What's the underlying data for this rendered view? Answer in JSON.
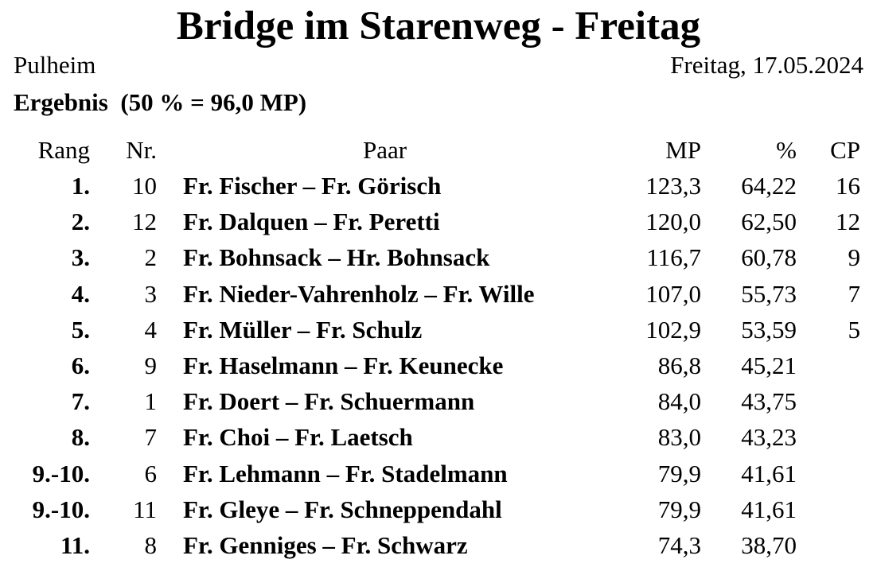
{
  "page": {
    "background": "#ffffff",
    "text_color": "#000000"
  },
  "header": {
    "title": "Bridge im Starenweg - Freitag",
    "location": "Pulheim",
    "date": "Freitag, 17.05.2024",
    "result_label": "Ergebnis  (50 % = 96,0 MP)"
  },
  "table": {
    "columns": [
      "Rang",
      "Nr.",
      "Paar",
      "MP",
      "%",
      "CP"
    ],
    "rows": [
      {
        "rang": "1.",
        "nr": "10",
        "paar": "Fr. Fischer – Fr. Görisch",
        "mp": "123,3",
        "pct": "64,22",
        "cp": "16"
      },
      {
        "rang": "2.",
        "nr": "12",
        "paar": "Fr. Dalquen – Fr. Peretti",
        "mp": "120,0",
        "pct": "62,50",
        "cp": "12"
      },
      {
        "rang": "3.",
        "nr": "2",
        "paar": "Fr. Bohnsack – Hr. Bohnsack",
        "mp": "116,7",
        "pct": "60,78",
        "cp": "9"
      },
      {
        "rang": "4.",
        "nr": "3",
        "paar": "Fr. Nieder-Vahrenholz – Fr. Wille",
        "mp": "107,0",
        "pct": "55,73",
        "cp": "7"
      },
      {
        "rang": "5.",
        "nr": "4",
        "paar": "Fr. Müller – Fr. Schulz",
        "mp": "102,9",
        "pct": "53,59",
        "cp": "5"
      },
      {
        "rang": "6.",
        "nr": "9",
        "paar": "Fr. Haselmann – Fr. Keunecke",
        "mp": "86,8",
        "pct": "45,21",
        "cp": ""
      },
      {
        "rang": "7.",
        "nr": "1",
        "paar": "Fr. Doert – Fr. Schuermann",
        "mp": "84,0",
        "pct": "43,75",
        "cp": ""
      },
      {
        "rang": "8.",
        "nr": "7",
        "paar": "Fr. Choi – Fr. Laetsch",
        "mp": "83,0",
        "pct": "43,23",
        "cp": ""
      },
      {
        "rang": "9.-10.",
        "nr": "6",
        "paar": "Fr. Lehmann – Fr. Stadelmann",
        "mp": "79,9",
        "pct": "41,61",
        "cp": ""
      },
      {
        "rang": "9.-10.",
        "nr": "11",
        "paar": "Fr. Gleye – Fr. Schneppendahl",
        "mp": "79,9",
        "pct": "41,61",
        "cp": ""
      },
      {
        "rang": "11.",
        "nr": "8",
        "paar": "Fr. Genniges – Fr. Schwarz",
        "mp": "74,3",
        "pct": "38,70",
        "cp": ""
      }
    ]
  }
}
